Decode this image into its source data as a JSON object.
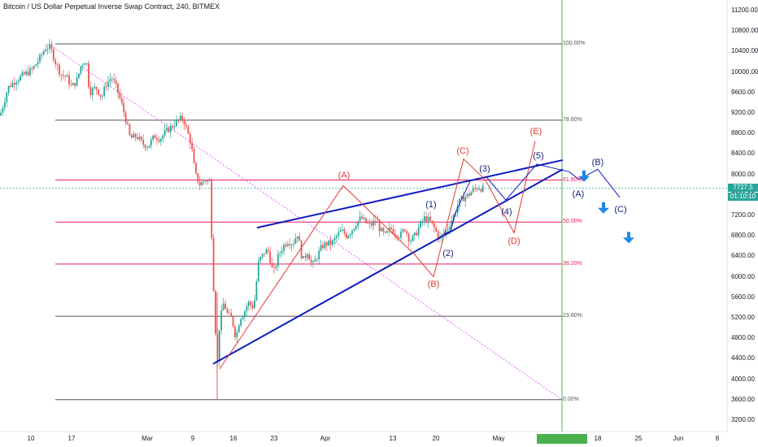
{
  "header": {
    "title": "Bitcoin / US Dollar Perpetual Inverse Swap Contract, 240, BITMEX"
  },
  "price_tag": {
    "price": "7727.5",
    "countdown": "01:10:10"
  },
  "date_tag": "",
  "colors": {
    "up": "#26a69a",
    "down": "#ef5350",
    "trendline": "#0d1bbf",
    "fib_gray": "#555555",
    "fib_pink": "#e91e63",
    "wave_red": "#e53935",
    "wave_blue": "#1a237e",
    "vertical_marker": "#4caf50",
    "arrow": "#1e88e5"
  },
  "chart_data": {
    "type": "candlestick",
    "symbol": "Bitcoin / US Dollar Perpetual Inverse Swap Contract",
    "interval": "240",
    "exchange": "BITMEX",
    "y_axis": {
      "ticks": [
        11200,
        10800,
        10400,
        10000,
        9600,
        9200,
        8800,
        8400,
        8000,
        7600,
        7200,
        6800,
        6400,
        6000,
        5600,
        5200,
        4800,
        4400,
        4000,
        3600,
        3200
      ],
      "range": [
        3000,
        11400
      ]
    },
    "x_axis": {
      "ticks": [
        "10",
        "17",
        "Mar",
        "9",
        "16",
        "23",
        "Apr",
        "13",
        "20",
        "May",
        "18",
        "25",
        "Jun",
        "8"
      ]
    },
    "last_price": 7727.5,
    "fib_levels": [
      {
        "label": "100.00%",
        "price": 10550,
        "color": "gray"
      },
      {
        "label": "78.60%",
        "price": 9060,
        "color": "gray"
      },
      {
        "label": "61.80%",
        "price": 7890,
        "color": "pink"
      },
      {
        "label": "50.00%",
        "price": 7070,
        "color": "pink"
      },
      {
        "label": "38.20%",
        "price": 6250,
        "color": "pink"
      },
      {
        "label": "23.60%",
        "price": 5230,
        "color": "gray"
      },
      {
        "label": "0.00%",
        "price": 3600,
        "color": "gray"
      }
    ],
    "price_path": [
      [
        0,
        9150
      ],
      [
        10,
        9700
      ],
      [
        20,
        9850
      ],
      [
        30,
        9950
      ],
      [
        40,
        10050
      ],
      [
        50,
        10300
      ],
      [
        57,
        10500
      ],
      [
        62,
        10470
      ],
      [
        68,
        10200
      ],
      [
        75,
        9950
      ],
      [
        82,
        9900
      ],
      [
        88,
        9700
      ],
      [
        95,
        9850
      ],
      [
        100,
        10150
      ],
      [
        106,
        10250
      ],
      [
        110,
        9600
      ],
      [
        118,
        9700
      ],
      [
        125,
        9500
      ],
      [
        130,
        9750
      ],
      [
        137,
        9900
      ],
      [
        143,
        9700
      ],
      [
        150,
        9350
      ],
      [
        155,
        9050
      ],
      [
        160,
        8700
      ],
      [
        168,
        8750
      ],
      [
        175,
        8600
      ],
      [
        182,
        8550
      ],
      [
        190,
        8750
      ],
      [
        197,
        8700
      ],
      [
        205,
        8850
      ],
      [
        212,
        8950
      ],
      [
        218,
        9050
      ],
      [
        225,
        9100
      ],
      [
        230,
        8850
      ],
      [
        235,
        8600
      ],
      [
        240,
        8000
      ],
      [
        246,
        7800
      ],
      [
        252,
        7900
      ],
      [
        258,
        7850
      ],
      [
        262,
        6000
      ],
      [
        264,
        5300
      ],
      [
        266,
        4600
      ],
      [
        268,
        4200
      ],
      [
        270,
        5100
      ],
      [
        275,
        5500
      ],
      [
        280,
        5250
      ],
      [
        285,
        5200
      ],
      [
        290,
        4800
      ],
      [
        295,
        5200
      ],
      [
        300,
        5300
      ],
      [
        305,
        5500
      ],
      [
        312,
        5400
      ],
      [
        318,
        6300
      ],
      [
        322,
        6400
      ],
      [
        326,
        6500
      ],
      [
        330,
        6500
      ],
      [
        336,
        6050
      ],
      [
        342,
        6400
      ],
      [
        348,
        6600
      ],
      [
        354,
        6700
      ],
      [
        360,
        6650
      ],
      [
        366,
        6850
      ],
      [
        372,
        6300
      ],
      [
        378,
        6500
      ],
      [
        384,
        6200
      ],
      [
        390,
        6400
      ],
      [
        396,
        6600
      ],
      [
        402,
        6650
      ],
      [
        408,
        6650
      ],
      [
        414,
        6800
      ],
      [
        420,
        6900
      ],
      [
        426,
        6800
      ],
      [
        432,
        6900
      ],
      [
        438,
        7050
      ],
      [
        444,
        7150
      ],
      [
        450,
        7050
      ],
      [
        456,
        7000
      ],
      [
        462,
        7100
      ],
      [
        468,
        6900
      ],
      [
        474,
        6800
      ],
      [
        480,
        6950
      ],
      [
        486,
        6850
      ],
      [
        492,
        6800
      ],
      [
        498,
        6950
      ],
      [
        504,
        6700
      ],
      [
        510,
        6800
      ],
      [
        516,
        7000
      ],
      [
        522,
        7150
      ],
      [
        528,
        7100
      ],
      [
        534,
        6950
      ],
      [
        540,
        6750
      ],
      [
        546,
        6850
      ],
      [
        552,
        7000
      ],
      [
        558,
        7200
      ],
      [
        564,
        7450
      ],
      [
        570,
        7550
      ],
      [
        576,
        7600
      ],
      [
        582,
        7700
      ],
      [
        588,
        7750
      ],
      [
        594,
        7720
      ]
    ],
    "series": [
      {
        "name": "Trendline upper",
        "points": [
          [
            316,
            6960
          ],
          [
            692,
            8280
          ]
        ]
      },
      {
        "name": "Trendline lower",
        "points": [
          [
            262,
            4300
          ],
          [
            692,
            8100
          ]
        ]
      },
      {
        "name": "Projection red",
        "points": [
          [
            270,
            4200
          ],
          [
            422,
            7780
          ],
          [
            510,
            6430
          ],
          [
            533,
            6000
          ],
          [
            570,
            8300
          ],
          [
            597,
            7890
          ],
          [
            632,
            6860
          ],
          [
            658,
            8650
          ]
        ]
      },
      {
        "name": "Projection blue",
        "points": [
          [
            545,
            6820
          ],
          [
            554,
            6900
          ],
          [
            560,
            7250
          ],
          [
            578,
            7870
          ],
          [
            598,
            7950
          ],
          [
            622,
            7500
          ],
          [
            660,
            8200
          ],
          [
            700,
            8050
          ],
          [
            712,
            7900
          ],
          [
            735,
            8100
          ],
          [
            762,
            7550
          ]
        ]
      }
    ],
    "wave_labels": [
      {
        "text": "(A)",
        "price": 7980,
        "x": 423,
        "color": "red"
      },
      {
        "text": "(B)",
        "price": 5850,
        "x": 533,
        "color": "red"
      },
      {
        "text": "(C)",
        "price": 8450,
        "x": 569,
        "color": "red"
      },
      {
        "text": "(D)",
        "price": 6700,
        "x": 632,
        "color": "red"
      },
      {
        "text": "(E)",
        "price": 8830,
        "x": 659,
        "color": "red"
      },
      {
        "text": "(1)",
        "price": 7400,
        "x": 530,
        "color": "blue"
      },
      {
        "text": "(2)",
        "price": 6450,
        "x": 551,
        "color": "blue"
      },
      {
        "text": "(3)",
        "price": 8100,
        "x": 596,
        "color": "blue"
      },
      {
        "text": "(4)",
        "price": 7260,
        "x": 623,
        "color": "blue"
      },
      {
        "text": "(5)",
        "price": 8360,
        "x": 662,
        "color": "blue"
      },
      {
        "text": "(A)",
        "price": 7610,
        "x": 711,
        "color": "blue"
      },
      {
        "text": "(B)",
        "price": 8230,
        "x": 735,
        "color": "blue"
      },
      {
        "text": "(C)",
        "price": 7310,
        "x": 763,
        "color": "blue"
      }
    ],
    "arrows": [
      {
        "x": 718,
        "price": 7950
      },
      {
        "x": 742,
        "price": 7330
      },
      {
        "x": 773,
        "price": 6750
      }
    ]
  }
}
